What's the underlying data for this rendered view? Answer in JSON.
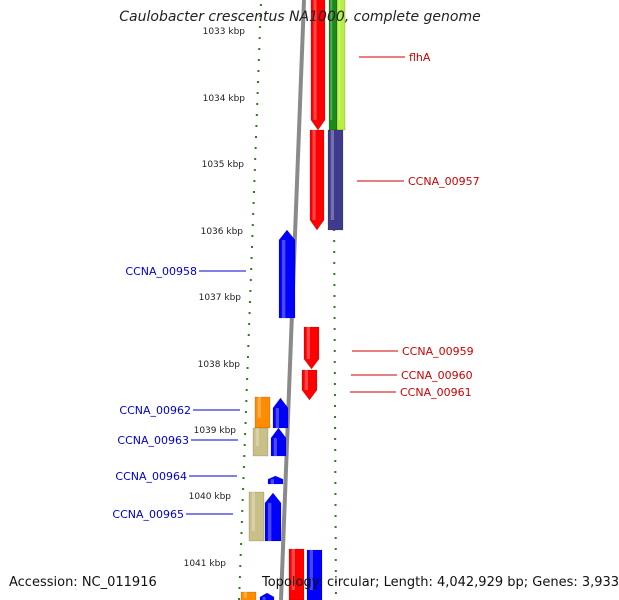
{
  "title": "Caulobacter crescentus NA1000, complete genome",
  "footer": {
    "accession": "Accession: NC_011916",
    "topology": "Topology: circular; Length: 4,042,929 bp; Genes: 3,933"
  },
  "colors": {
    "backbone": "#8a8a8a",
    "tick": "#2e7d1e",
    "forward_label": "#cc0000",
    "reverse_label": "#0000cc",
    "red": "#ff0000",
    "blue": "#0000ff",
    "navy": "#3f3a8c",
    "green": "#1a8a1a",
    "lime": "#b8f040",
    "orange": "#ff8c00",
    "khaki": "#c8c088"
  },
  "scale": {
    "labels": [
      "1033 kbp",
      "1034 kbp",
      "1035 kbp",
      "1036 kbp",
      "1037 kbp",
      "1038 kbp",
      "1039 kbp",
      "1040 kbp",
      "1041 kbp"
    ]
  },
  "genes": [
    {
      "label": "flhA",
      "strand": "forward",
      "color": "red"
    },
    {
      "label": "",
      "strand": "forward",
      "color": "green"
    },
    {
      "label": "",
      "strand": "forward",
      "color": "lime"
    },
    {
      "label": "CCNA_00957",
      "strand": "forward",
      "color": "red"
    },
    {
      "label": "",
      "strand": "forward",
      "color": "navy"
    },
    {
      "label": "CCNA_00958",
      "strand": "reverse",
      "color": "blue"
    },
    {
      "label": "CCNA_00959",
      "strand": "forward",
      "color": "red"
    },
    {
      "label": "CCNA_00960",
      "strand": "forward",
      "color": "red"
    },
    {
      "label": "CCNA_00961",
      "strand": "forward",
      "color": "red"
    },
    {
      "label": "CCNA_00962",
      "strand": "reverse",
      "color": "orange"
    },
    {
      "label": "",
      "strand": "reverse",
      "color": "blue"
    },
    {
      "label": "CCNA_00963",
      "strand": "reverse",
      "color": "khaki"
    },
    {
      "label": "",
      "strand": "reverse",
      "color": "blue"
    },
    {
      "label": "CCNA_00964",
      "strand": "reverse",
      "color": "blue"
    },
    {
      "label": "CCNA_00965",
      "strand": "reverse",
      "color": "khaki"
    },
    {
      "label": "",
      "strand": "reverse",
      "color": "blue"
    },
    {
      "label": "",
      "strand": "forward",
      "color": "red"
    },
    {
      "label": "",
      "strand": "forward",
      "color": "blue"
    },
    {
      "label": "",
      "strand": "reverse",
      "color": "orange"
    },
    {
      "label": "",
      "strand": "reverse",
      "color": "blue"
    }
  ]
}
